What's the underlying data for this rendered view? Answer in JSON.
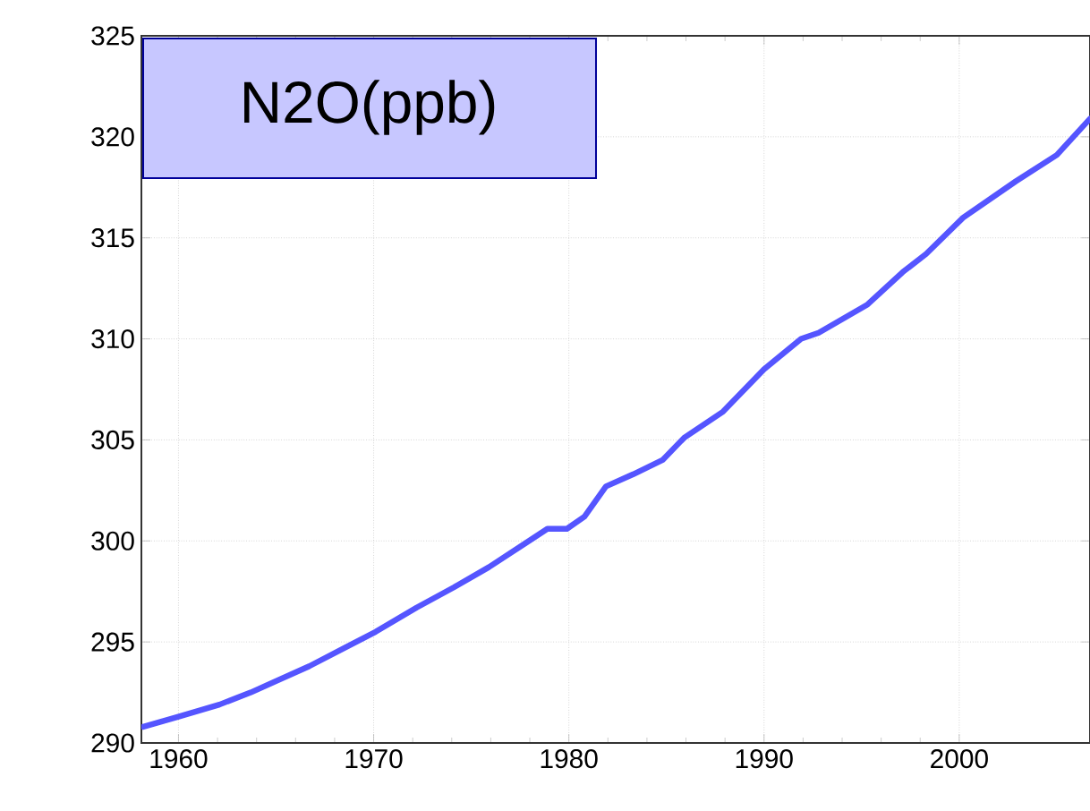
{
  "chart_data": {
    "type": "line",
    "title": "N2O(ppb)",
    "x": [
      1958.2,
      1960.0,
      1962.1,
      1963.7,
      1966.7,
      1968.5,
      1970.1,
      1972.2,
      1974.1,
      1975.9,
      1977.8,
      1978.9,
      1979.9,
      1980.8,
      1981.9,
      1983.3,
      1984.8,
      1985.9,
      1987.9,
      1990.0,
      1991.9,
      1992.8,
      1995.3,
      1997.1,
      1998.3,
      2000.2,
      2002.9,
      2005.0,
      2006.7
    ],
    "values": [
      290.8,
      291.3,
      291.9,
      292.5,
      293.8,
      294.7,
      295.5,
      296.7,
      297.7,
      298.7,
      299.9,
      300.6,
      300.6,
      301.2,
      302.7,
      303.3,
      304.0,
      305.1,
      306.4,
      308.5,
      310.0,
      310.3,
      311.7,
      313.3,
      314.2,
      316.0,
      317.8,
      319.1,
      320.9
    ],
    "color": "#5555ff",
    "xlim": [
      1958.1,
      2006.7
    ],
    "ylim": [
      290,
      325
    ],
    "xticks": [
      1960,
      1970,
      1980,
      1990,
      2000
    ],
    "yticks": [
      290,
      295,
      300,
      305,
      310,
      315,
      320,
      325
    ],
    "grid": true,
    "marker": "none",
    "line_style": "solid"
  }
}
